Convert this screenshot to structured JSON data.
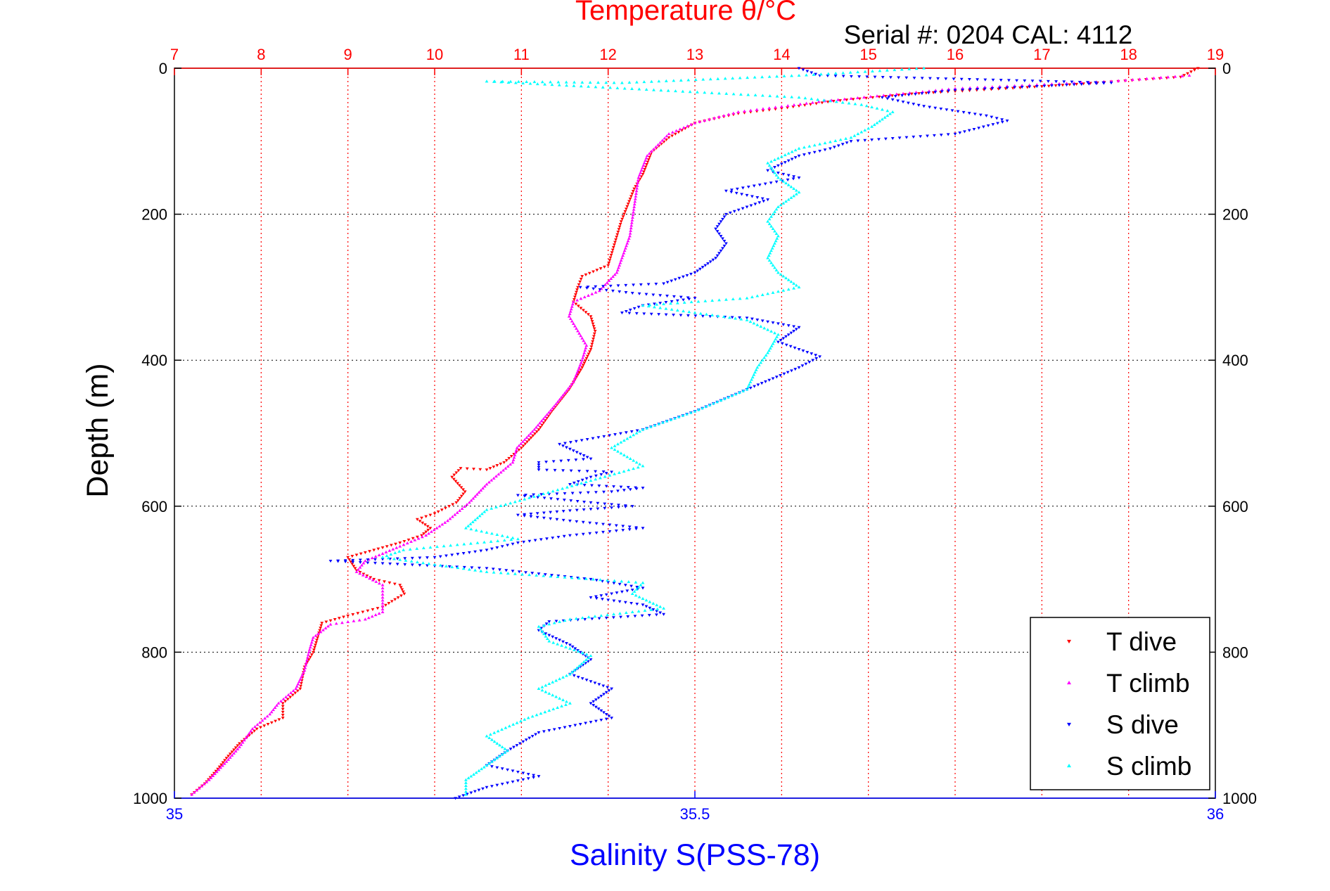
{
  "chart_data": {
    "type": "scatter",
    "title": "Temperature θ/°C",
    "subtitle": "Serial #: 0204  CAL: 4112",
    "ylabel": "Depth (m)",
    "xlabel": "Salinity S(PSS-78)",
    "grid": true,
    "legend_position": "bottom-right",
    "y_axis": {
      "range": [
        0,
        1000
      ],
      "inverted": true,
      "ticks": [
        "0",
        "200",
        "400",
        "600",
        "800",
        "1000"
      ]
    },
    "x_top_axis": {
      "name": "Temperature",
      "range": [
        7,
        19
      ],
      "ticks": [
        "7",
        "8",
        "9",
        "10",
        "11",
        "12",
        "13",
        "14",
        "15",
        "16",
        "17",
        "18",
        "19"
      ],
      "color": "#ff0000"
    },
    "x_bottom_axis": {
      "name": "Salinity",
      "range": [
        35,
        36
      ],
      "ticks": [
        "35",
        "35.5",
        "36"
      ],
      "color": "#0000ff"
    },
    "series": [
      {
        "name": "T dive",
        "axis": "temperature",
        "marker": "triangle-down",
        "color": "#ff0000",
        "points": [
          [
            18.8,
            0
          ],
          [
            18.6,
            12
          ],
          [
            17.0,
            25
          ],
          [
            15.5,
            35
          ],
          [
            14.6,
            45
          ],
          [
            14.0,
            55
          ],
          [
            13.5,
            62
          ],
          [
            13.0,
            75
          ],
          [
            12.7,
            95
          ],
          [
            12.5,
            115
          ],
          [
            12.4,
            145
          ],
          [
            12.3,
            165
          ],
          [
            12.15,
            210
          ],
          [
            12.0,
            270
          ],
          [
            11.7,
            285
          ],
          [
            11.65,
            300
          ],
          [
            11.6,
            320
          ],
          [
            11.8,
            340
          ],
          [
            11.85,
            360
          ],
          [
            11.8,
            385
          ],
          [
            11.7,
            410
          ],
          [
            11.55,
            440
          ],
          [
            11.35,
            470
          ],
          [
            11.2,
            495
          ],
          [
            11.0,
            520
          ],
          [
            10.8,
            540
          ],
          [
            10.6,
            550
          ],
          [
            10.3,
            548
          ],
          [
            10.2,
            560
          ],
          [
            10.35,
            580
          ],
          [
            10.25,
            595
          ],
          [
            10.0,
            610
          ],
          [
            9.8,
            618
          ],
          [
            9.95,
            630
          ],
          [
            9.85,
            640
          ],
          [
            9.6,
            650
          ],
          [
            9.3,
            660
          ],
          [
            9.0,
            670
          ],
          [
            9.1,
            688
          ],
          [
            9.3,
            700
          ],
          [
            9.6,
            708
          ],
          [
            9.65,
            720
          ],
          [
            9.4,
            738
          ],
          [
            9.0,
            750
          ],
          [
            8.7,
            760
          ],
          [
            8.65,
            780
          ],
          [
            8.6,
            800
          ],
          [
            8.5,
            820
          ],
          [
            8.45,
            850
          ],
          [
            8.25,
            870
          ],
          [
            8.25,
            890
          ],
          [
            7.95,
            905
          ],
          [
            7.75,
            925
          ],
          [
            7.6,
            945
          ],
          [
            7.5,
            960
          ],
          [
            7.35,
            980
          ],
          [
            7.2,
            995
          ]
        ]
      },
      {
        "name": "T climb",
        "axis": "temperature",
        "marker": "triangle-up",
        "color": "#ff00ff",
        "points": [
          [
            18.7,
            10
          ],
          [
            17.8,
            18
          ],
          [
            16.0,
            28
          ],
          [
            14.5,
            45
          ],
          [
            13.5,
            60
          ],
          [
            13.0,
            75
          ],
          [
            12.7,
            90
          ],
          [
            12.45,
            120
          ],
          [
            12.35,
            150
          ],
          [
            12.3,
            190
          ],
          [
            12.25,
            230
          ],
          [
            12.1,
            280
          ],
          [
            11.9,
            305
          ],
          [
            11.6,
            320
          ],
          [
            11.55,
            340
          ],
          [
            11.65,
            360
          ],
          [
            11.75,
            380
          ],
          [
            11.7,
            400
          ],
          [
            11.6,
            430
          ],
          [
            11.4,
            460
          ],
          [
            11.15,
            495
          ],
          [
            10.95,
            520
          ],
          [
            10.9,
            540
          ],
          [
            10.6,
            570
          ],
          [
            10.4,
            595
          ],
          [
            10.15,
            620
          ],
          [
            9.9,
            640
          ],
          [
            9.6,
            655
          ],
          [
            9.4,
            665
          ],
          [
            9.2,
            675
          ],
          [
            9.1,
            690
          ],
          [
            9.4,
            708
          ],
          [
            9.4,
            725
          ],
          [
            9.4,
            745
          ],
          [
            9.2,
            755
          ],
          [
            8.8,
            762
          ],
          [
            8.6,
            780
          ],
          [
            8.55,
            800
          ],
          [
            8.5,
            825
          ],
          [
            8.4,
            850
          ],
          [
            8.2,
            870
          ],
          [
            8.1,
            885
          ],
          [
            7.9,
            905
          ],
          [
            7.75,
            930
          ],
          [
            7.6,
            950
          ],
          [
            7.4,
            975
          ],
          [
            7.2,
            995
          ]
        ]
      },
      {
        "name": "S dive",
        "axis": "salinity",
        "marker": "triangle-down",
        "color": "#0000ff",
        "points": [
          [
            35.6,
            0
          ],
          [
            35.62,
            10
          ],
          [
            35.9,
            20
          ],
          [
            35.75,
            30
          ],
          [
            35.68,
            40
          ],
          [
            35.72,
            52
          ],
          [
            35.78,
            65
          ],
          [
            35.8,
            72
          ],
          [
            35.75,
            90
          ],
          [
            35.65,
            100
          ],
          [
            35.63,
            110
          ],
          [
            35.6,
            120
          ],
          [
            35.57,
            140
          ],
          [
            35.6,
            150
          ],
          [
            35.53,
            168
          ],
          [
            35.57,
            180
          ],
          [
            35.53,
            200
          ],
          [
            35.52,
            220
          ],
          [
            35.53,
            240
          ],
          [
            35.52,
            260
          ],
          [
            35.5,
            280
          ],
          [
            35.47,
            295
          ],
          [
            35.39,
            300
          ],
          [
            35.44,
            308
          ],
          [
            35.5,
            315
          ],
          [
            35.45,
            325
          ],
          [
            35.43,
            335
          ],
          [
            35.55,
            342
          ],
          [
            35.6,
            355
          ],
          [
            35.58,
            375
          ],
          [
            35.62,
            395
          ],
          [
            35.6,
            410
          ],
          [
            35.55,
            440
          ],
          [
            35.5,
            470
          ],
          [
            35.45,
            495
          ],
          [
            35.37,
            515
          ],
          [
            35.4,
            535
          ],
          [
            35.35,
            540
          ],
          [
            35.35,
            550
          ],
          [
            35.42,
            553
          ],
          [
            35.4,
            560
          ],
          [
            35.38,
            570
          ],
          [
            35.45,
            575
          ],
          [
            35.42,
            580
          ],
          [
            35.33,
            585
          ],
          [
            35.4,
            595
          ],
          [
            35.44,
            600
          ],
          [
            35.38,
            606
          ],
          [
            35.33,
            612
          ],
          [
            35.38,
            620
          ],
          [
            35.45,
            630
          ],
          [
            35.38,
            640
          ],
          [
            35.33,
            650
          ],
          [
            35.3,
            660
          ],
          [
            35.25,
            670
          ],
          [
            35.15,
            675
          ],
          [
            35.3,
            685
          ],
          [
            35.4,
            700
          ],
          [
            35.45,
            712
          ],
          [
            35.4,
            725
          ],
          [
            35.45,
            735
          ],
          [
            35.47,
            748
          ],
          [
            35.36,
            758
          ],
          [
            35.35,
            770
          ],
          [
            35.38,
            790
          ],
          [
            35.4,
            810
          ],
          [
            35.38,
            830
          ],
          [
            35.42,
            850
          ],
          [
            35.4,
            870
          ],
          [
            35.42,
            890
          ],
          [
            35.35,
            910
          ],
          [
            35.32,
            935
          ],
          [
            35.3,
            955
          ],
          [
            35.35,
            970
          ],
          [
            35.3,
            985
          ],
          [
            35.27,
            1000
          ]
        ]
      },
      {
        "name": "S climb",
        "axis": "salinity",
        "marker": "triangle-up",
        "color": "#00ffff",
        "points": [
          [
            35.72,
            0
          ],
          [
            35.6,
            10
          ],
          [
            35.43,
            20
          ],
          [
            35.3,
            18
          ],
          [
            35.6,
            40
          ],
          [
            35.66,
            50
          ],
          [
            35.69,
            60
          ],
          [
            35.67,
            80
          ],
          [
            35.65,
            95
          ],
          [
            35.6,
            110
          ],
          [
            35.57,
            130
          ],
          [
            35.58,
            150
          ],
          [
            35.6,
            170
          ],
          [
            35.58,
            190
          ],
          [
            35.57,
            210
          ],
          [
            35.58,
            230
          ],
          [
            35.57,
            260
          ],
          [
            35.58,
            280
          ],
          [
            35.6,
            300
          ],
          [
            35.55,
            315
          ],
          [
            35.45,
            325
          ],
          [
            35.5,
            335
          ],
          [
            35.55,
            345
          ],
          [
            35.58,
            365
          ],
          [
            35.57,
            390
          ],
          [
            35.56,
            410
          ],
          [
            35.55,
            440
          ],
          [
            35.5,
            470
          ],
          [
            35.45,
            495
          ],
          [
            35.42,
            520
          ],
          [
            35.45,
            545
          ],
          [
            35.4,
            565
          ],
          [
            35.35,
            585
          ],
          [
            35.3,
            605
          ],
          [
            35.28,
            630
          ],
          [
            35.33,
            645
          ],
          [
            35.22,
            660
          ],
          [
            35.2,
            670
          ],
          [
            35.3,
            690
          ],
          [
            35.45,
            705
          ],
          [
            35.44,
            720
          ],
          [
            35.47,
            740
          ],
          [
            35.38,
            755
          ],
          [
            35.35,
            765
          ],
          [
            35.36,
            785
          ],
          [
            35.4,
            805
          ],
          [
            35.38,
            830
          ],
          [
            35.35,
            850
          ],
          [
            35.38,
            870
          ],
          [
            35.34,
            890
          ],
          [
            35.3,
            915
          ],
          [
            35.32,
            935
          ],
          [
            35.3,
            955
          ],
          [
            35.28,
            975
          ],
          [
            35.28,
            995
          ]
        ]
      }
    ]
  }
}
